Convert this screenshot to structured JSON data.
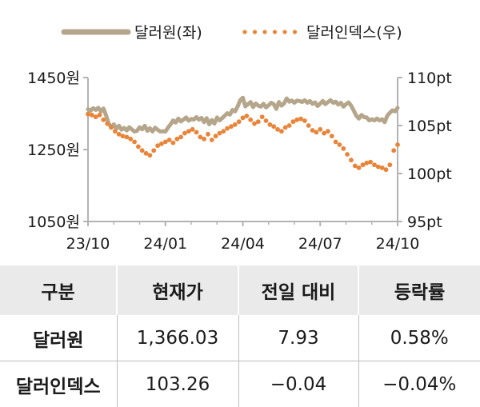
{
  "chart_data": {
    "type": "line",
    "legend": [
      {
        "name": "달러원(좌)",
        "color": "#b5a68b",
        "style": "solid"
      },
      {
        "name": "달러인덱스(우)",
        "color": "#e8853a",
        "style": "dotted"
      }
    ],
    "legend_position": "top",
    "grid": false,
    "x_ticks": [
      "23/10",
      "24/01",
      "24/04",
      "24/07",
      "24/10"
    ],
    "y_left": {
      "ticks": [
        "1450원",
        "1250원",
        "1050원"
      ],
      "range": [
        1050,
        1450
      ]
    },
    "y_right": {
      "ticks": [
        "110pt",
        "105pt",
        "100pt",
        "95pt"
      ],
      "range": [
        95,
        110
      ]
    },
    "series": [
      {
        "name": "달러원(좌)",
        "axis": "left",
        "x": [
          0,
          0.1,
          0.2,
          0.3,
          0.4,
          0.5,
          0.6,
          0.7,
          0.8,
          0.9,
          1.0,
          1.1,
          1.2,
          1.3,
          1.4,
          1.5,
          1.6,
          1.7,
          1.8,
          1.9,
          2.0,
          2.1,
          2.2,
          2.3,
          2.4,
          2.5,
          2.6,
          2.7,
          2.8,
          2.9,
          3.0,
          3.1,
          3.2,
          3.3,
          3.4,
          3.5,
          3.6,
          3.7,
          3.8,
          3.9,
          4.0,
          4.1,
          4.2,
          4.3,
          4.4,
          4.5,
          4.6,
          4.7,
          4.8,
          4.9,
          5.0,
          5.1,
          5.2,
          5.3,
          5.4,
          5.5,
          5.6,
          5.7,
          5.8,
          5.9,
          6.0,
          6.1,
          6.2,
          6.3,
          6.4,
          6.5,
          6.6,
          6.7,
          6.8,
          6.9,
          7.0,
          7.1,
          7.2,
          7.3,
          7.4,
          7.5,
          7.6,
          7.7,
          7.8,
          7.9,
          8.0,
          8.1,
          8.2,
          8.3,
          8.4,
          8.5,
          8.6,
          8.7,
          8.8,
          8.9,
          9.0,
          9.1,
          9.2,
          9.3,
          9.4,
          9.5,
          9.6,
          9.7,
          9.8,
          9.9,
          10.0,
          10.1,
          10.2,
          10.3,
          10.4,
          10.5,
          10.6,
          10.7,
          10.8,
          10.9,
          11.0,
          11.1,
          11.2,
          11.3,
          11.4,
          11.5,
          11.6,
          11.7,
          11.8,
          11.9,
          12.0
        ],
        "values": [
          1362,
          1358,
          1365,
          1360,
          1366,
          1356,
          1364,
          1345,
          1322,
          1312,
          1320,
          1308,
          1316,
          1305,
          1310,
          1303,
          1312,
          1306,
          1300,
          1302,
          1312,
          1306,
          1316,
          1302,
          1309,
          1300,
          1311,
          1305,
          1300,
          1301,
          1300,
          1311,
          1320,
          1331,
          1325,
          1336,
          1328,
          1333,
          1339,
          1330,
          1335,
          1333,
          1340,
          1333,
          1338,
          1326,
          1337,
          1320,
          1332,
          1322,
          1339,
          1331,
          1337,
          1344,
          1351,
          1347,
          1360,
          1356,
          1370,
          1387,
          1394,
          1370,
          1376,
          1382,
          1368,
          1378,
          1372,
          1369,
          1377,
          1367,
          1373,
          1380,
          1376,
          1363,
          1382,
          1372,
          1378,
          1392,
          1383,
          1386,
          1380,
          1386,
          1385,
          1382,
          1387,
          1380,
          1385,
          1377,
          1381,
          1371,
          1378,
          1385,
          1376,
          1382,
          1387,
          1380,
          1383,
          1375,
          1380,
          1369,
          1376,
          1381,
          1372,
          1358,
          1344,
          1336,
          1346,
          1340,
          1339,
          1331,
          1334,
          1331,
          1336,
          1331,
          1334,
          1326,
          1344,
          1352,
          1359,
          1356,
          1366
        ]
      },
      {
        "name": "달러인덱스(우)",
        "axis": "right",
        "x": [
          0,
          0.15,
          0.3,
          0.45,
          0.6,
          0.75,
          0.9,
          1.05,
          1.2,
          1.35,
          1.5,
          1.65,
          1.8,
          1.95,
          2.1,
          2.25,
          2.4,
          2.55,
          2.7,
          2.85,
          3.0,
          3.15,
          3.3,
          3.45,
          3.6,
          3.75,
          3.9,
          4.05,
          4.2,
          4.35,
          4.5,
          4.65,
          4.8,
          4.95,
          5.1,
          5.25,
          5.4,
          5.55,
          5.7,
          5.85,
          6.0,
          6.15,
          6.3,
          6.45,
          6.6,
          6.75,
          6.9,
          7.05,
          7.2,
          7.35,
          7.5,
          7.65,
          7.8,
          7.95,
          8.1,
          8.25,
          8.4,
          8.55,
          8.7,
          8.85,
          9.0,
          9.15,
          9.3,
          9.45,
          9.6,
          9.75,
          9.9,
          10.05,
          10.2,
          10.35,
          10.5,
          10.65,
          10.8,
          10.95,
          11.1,
          11.25,
          11.4,
          11.55,
          11.7,
          11.85,
          12.0
        ],
        "values": [
          106.2,
          106.1,
          105.9,
          106.1,
          105.6,
          105.2,
          104.8,
          104.4,
          104.1,
          103.9,
          103.8,
          103.6,
          103.3,
          102.8,
          102.4,
          102.1,
          101.9,
          102.4,
          102.9,
          103.1,
          103.3,
          103.5,
          103.2,
          103.6,
          103.8,
          104.2,
          104.4,
          104.6,
          104.3,
          103.8,
          103.6,
          104.1,
          103.5,
          103.9,
          104.2,
          104.4,
          104.7,
          104.9,
          105.1,
          105.4,
          105.8,
          106.0,
          105.6,
          105.2,
          105.4,
          105.9,
          105.5,
          105.1,
          104.9,
          104.6,
          104.4,
          104.8,
          105.0,
          105.4,
          105.6,
          105.7,
          105.5,
          105.0,
          104.5,
          104.3,
          104.6,
          104.2,
          104.4,
          103.9,
          103.3,
          103.0,
          102.6,
          102.0,
          101.4,
          100.8,
          100.6,
          100.9,
          101.1,
          101.2,
          100.9,
          100.7,
          100.6,
          100.4,
          100.9,
          102.4,
          103.0
        ]
      }
    ]
  },
  "table": {
    "headers": [
      "구분",
      "현재가",
      "전일 대비",
      "등락률"
    ],
    "rows": [
      [
        "달러원",
        "1,366.03",
        "7.93",
        "0.58%"
      ],
      [
        "달러인덱스",
        "103.26",
        "−0.04",
        "−0.04%"
      ]
    ]
  }
}
